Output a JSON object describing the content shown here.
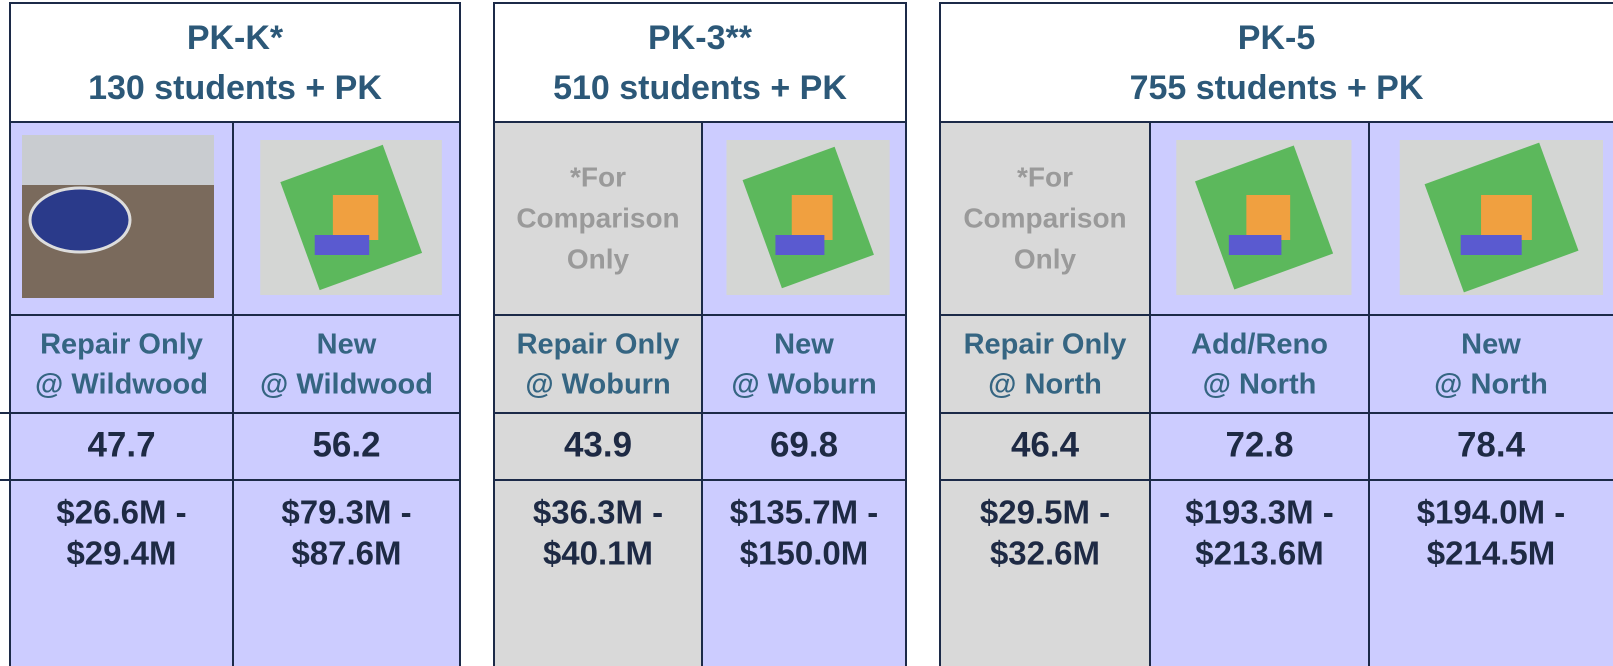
{
  "panels": [
    {
      "title": "PK-K*",
      "subtitle": "130 students + PK",
      "columns": [
        {
          "label": [
            "Repair Only",
            "@ Wildwood"
          ],
          "score": 47.7,
          "cost": [
            "$26.6M -",
            "$29.4M"
          ]
        },
        {
          "label": [
            "New",
            "@ Wildwood"
          ],
          "score": 56.2,
          "cost": [
            "$79.3M -",
            "$87.6M"
          ]
        }
      ]
    },
    {
      "title": "PK-3**",
      "subtitle": "510 students + PK",
      "columns": [
        {
          "note": [
            "*For",
            "Comparison",
            "Only"
          ],
          "label": [
            "Repair Only",
            "@ Woburn"
          ],
          "score": 43.9,
          "cost": [
            "$36.3M -",
            "$40.1M"
          ]
        },
        {
          "label": [
            "New",
            "@ Woburn"
          ],
          "score": 69.8,
          "cost": [
            "$135.7M -",
            "$150.0M"
          ]
        }
      ]
    },
    {
      "title": "PK-5",
      "subtitle": "755 students + PK",
      "columns": [
        {
          "note": [
            "*For",
            "Comparison",
            "Only"
          ],
          "label": [
            "Repair Only",
            "@ North"
          ],
          "score": 46.4,
          "cost": [
            "$29.5M -",
            "$32.6M"
          ]
        },
        {
          "label": [
            "Add/Reno",
            "@ North"
          ],
          "score": 72.8,
          "cost": [
            "$193.3M -",
            "$213.6M"
          ]
        },
        {
          "label": [
            "New",
            "@ North"
          ],
          "score": 78.4,
          "cost": [
            "$194.0M -",
            "$214.5M"
          ]
        }
      ]
    }
  ]
}
